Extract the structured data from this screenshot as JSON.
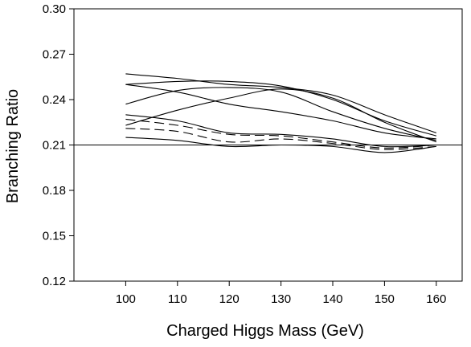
{
  "chart_data": {
    "type": "line",
    "title": "",
    "xlabel": "Charged Higgs Mass (GeV)",
    "ylabel": "Branching Ratio",
    "xlim": [
      90,
      165
    ],
    "ylim": [
      0.12,
      0.3
    ],
    "x_ticks": [
      "100",
      "110",
      "120",
      "130",
      "140",
      "150",
      "160"
    ],
    "y_ticks": [
      "0.12",
      "0.15",
      "0.18",
      "0.21",
      "0.24",
      "0.27",
      "0.30"
    ],
    "x_tick_values": [
      100,
      110,
      120,
      130,
      140,
      150,
      160
    ],
    "y_tick_values": [
      0.12,
      0.15,
      0.18,
      0.21,
      0.24,
      0.27,
      0.3
    ],
    "reference_line": 0.21,
    "grid": false,
    "legend": "none",
    "x": [
      100,
      110,
      120,
      130,
      140,
      150,
      160
    ],
    "series": [
      {
        "style": "solid",
        "values": [
          0.257,
          0.254,
          0.25,
          0.248,
          0.243,
          0.23,
          0.218
        ]
      },
      {
        "style": "solid",
        "values": [
          0.25,
          0.252,
          0.252,
          0.249,
          0.24,
          0.226,
          0.216
        ]
      },
      {
        "style": "solid",
        "values": [
          0.25,
          0.245,
          0.237,
          0.232,
          0.226,
          0.218,
          0.214
        ]
      },
      {
        "style": "solid",
        "values": [
          0.237,
          0.246,
          0.248,
          0.245,
          0.232,
          0.221,
          0.213
        ]
      },
      {
        "style": "solid",
        "values": [
          0.223,
          0.233,
          0.241,
          0.247,
          0.241,
          0.225,
          0.212
        ]
      },
      {
        "style": "solid",
        "values": [
          0.23,
          0.226,
          0.218,
          0.217,
          0.214,
          0.209,
          0.21
        ]
      },
      {
        "style": "dashed",
        "values": [
          0.227,
          0.223,
          0.217,
          0.216,
          0.212,
          0.208,
          0.21
        ]
      },
      {
        "style": "dashed",
        "values": [
          0.221,
          0.219,
          0.212,
          0.214,
          0.211,
          0.207,
          0.209
        ]
      },
      {
        "style": "solid",
        "values": [
          0.215,
          0.213,
          0.209,
          0.21,
          0.209,
          0.205,
          0.209
        ]
      }
    ]
  }
}
